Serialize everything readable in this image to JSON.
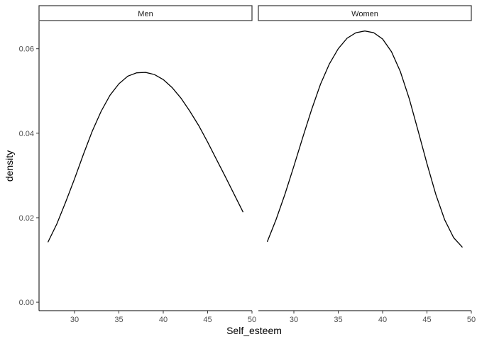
{
  "chart_data": {
    "type": "line",
    "subtype": "density",
    "facet_by": "sex",
    "xlabel": "Self_esteem",
    "ylabel": "density",
    "xlim": [
      26,
      50
    ],
    "ylim": [
      -0.002,
      0.0665
    ],
    "x_ticks": [
      30,
      35,
      40,
      45,
      50
    ],
    "y_ticks": [
      0.0,
      0.02,
      0.04,
      0.06
    ],
    "y_tick_labels": [
      "0.00",
      "0.02",
      "0.04",
      "0.06"
    ],
    "grid": false,
    "facets": [
      {
        "label": "Men",
        "series": [
          {
            "x": [
              27,
              28,
              29,
              30,
              31,
              32,
              33,
              34,
              35,
              36,
              37,
              38,
              39,
              40,
              41,
              42,
              43,
              44,
              45,
              46,
              47,
              48,
              49
            ],
            "y": [
              0.0142,
              0.0185,
              0.0237,
              0.0292,
              0.035,
              0.0405,
              0.0452,
              0.049,
              0.0517,
              0.0535,
              0.0543,
              0.0544,
              0.0539,
              0.0527,
              0.0508,
              0.0483,
              0.0452,
              0.0418,
              0.0379,
              0.0338,
              0.0297,
              0.0255,
              0.0213
            ]
          }
        ]
      },
      {
        "label": "Women",
        "series": [
          {
            "x": [
              27,
              28,
              29,
              30,
              31,
              32,
              33,
              34,
              35,
              36,
              37,
              38,
              39,
              40,
              41,
              42,
              43,
              44,
              45,
              46,
              47,
              48,
              49
            ],
            "y": [
              0.0143,
              0.0196,
              0.0256,
              0.0322,
              0.039,
              0.0456,
              0.0516,
              0.0564,
              0.06,
              0.0625,
              0.0638,
              0.0642,
              0.0638,
              0.0623,
              0.0593,
              0.0546,
              0.0482,
              0.0406,
              0.0328,
              0.0255,
              0.0195,
              0.0153,
              0.013
            ]
          }
        ]
      }
    ]
  }
}
